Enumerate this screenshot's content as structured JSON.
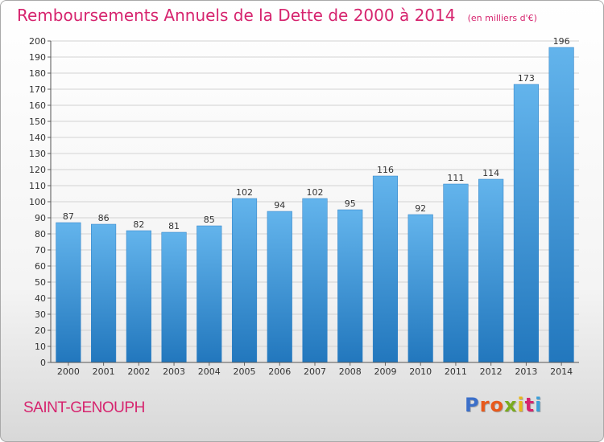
{
  "chart_data": {
    "type": "bar",
    "title": "Remboursements Annuels de la Dette de 2000 à 2014",
    "subtitle": "(en milliers d'€)",
    "categories": [
      "2000",
      "2001",
      "2002",
      "2003",
      "2004",
      "2005",
      "2006",
      "2007",
      "2008",
      "2009",
      "2010",
      "2011",
      "2012",
      "2013",
      "2014"
    ],
    "values": [
      87,
      86,
      82,
      81,
      85,
      102,
      94,
      102,
      95,
      116,
      92,
      111,
      114,
      173,
      196
    ],
    "ylim": [
      0,
      200
    ],
    "ytick_step": 10,
    "xlabel": "",
    "ylabel": "",
    "grid": true,
    "bar_color": "#3a93d9",
    "title_color": "#d6246e"
  },
  "footer": {
    "commune": "SAINT-GENOUPH",
    "logo_letters": [
      "P",
      "r",
      "o",
      "x",
      "i",
      "t",
      "i"
    ],
    "logo_colors": [
      "#3b6fc9",
      "#e85a1c",
      "#e85a1c",
      "#7aab1e",
      "#e8b81c",
      "#d6246e",
      "#3b9fd9"
    ]
  }
}
